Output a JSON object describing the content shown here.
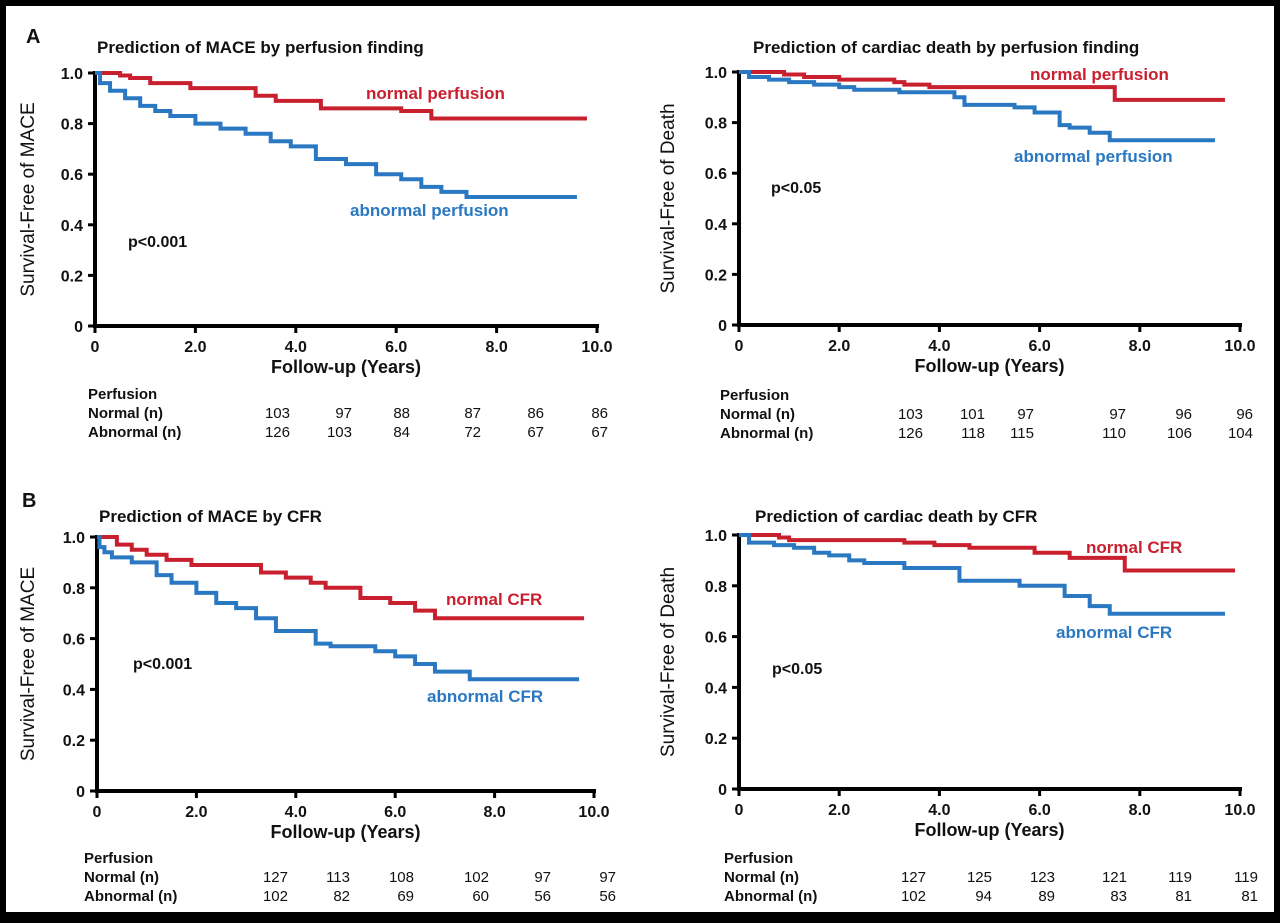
{
  "figure": {
    "panel_labels": [
      "A",
      "B"
    ],
    "colors": {
      "normal": "#C8202F",
      "abnormal": "#2A78C2",
      "axis": "#000000"
    }
  },
  "chart_data": [
    {
      "id": "a-left",
      "panel": "A",
      "type": "line",
      "subtype": "kaplan-meier-step",
      "title": "Prediction of MACE by perfusion finding",
      "xlabel": "Follow-up (Years)",
      "ylabel": "Survival-Free of MACE",
      "xlim": [
        0,
        10
      ],
      "ylim": [
        0,
        1
      ],
      "xticks": [
        "0",
        "2.0",
        "4.0",
        "6.0",
        "8.0",
        "10.0"
      ],
      "yticks": [
        "0",
        "0.2",
        "0.4",
        "0.6",
        "0.8",
        "1.0"
      ],
      "grid": false,
      "annotation": "p<0.001",
      "series": [
        {
          "name": "normal perfusion",
          "color": "#C8202F",
          "x": [
            0,
            0.5,
            0.7,
            1.1,
            1.9,
            3.2,
            3.6,
            4.5,
            6.1,
            6.7,
            9.8
          ],
          "y": [
            1.0,
            0.99,
            0.98,
            0.96,
            0.94,
            0.91,
            0.89,
            0.86,
            0.85,
            0.82,
            0.82
          ]
        },
        {
          "name": "abnormal perfusion",
          "color": "#2A78C2",
          "x": [
            0,
            0.1,
            0.3,
            0.6,
            0.9,
            1.2,
            1.5,
            2.0,
            2.5,
            3.0,
            3.5,
            3.9,
            4.4,
            5.0,
            5.6,
            6.1,
            6.5,
            6.9,
            7.4,
            9.6
          ],
          "y": [
            1.0,
            0.96,
            0.93,
            0.9,
            0.87,
            0.85,
            0.83,
            0.8,
            0.78,
            0.76,
            0.73,
            0.71,
            0.66,
            0.64,
            0.6,
            0.58,
            0.55,
            0.53,
            0.51,
            0.51
          ]
        }
      ],
      "legend": [
        {
          "label": "normal perfusion",
          "color": "#C8202F"
        },
        {
          "label": "abnormal perfusion",
          "color": "#2A78C2"
        }
      ],
      "risk_table": {
        "header": "Perfusion",
        "rows": [
          {
            "label": "Normal (n)",
            "values": [
              103,
              97,
              88,
              87,
              86,
              86
            ]
          },
          {
            "label": "Abnormal (n)",
            "values": [
              126,
              103,
              84,
              72,
              67,
              67
            ]
          }
        ]
      }
    },
    {
      "id": "a-right",
      "panel": "A",
      "type": "line",
      "subtype": "kaplan-meier-step",
      "title": "Prediction of cardiac death by perfusion finding",
      "xlabel": "Follow-up (Years)",
      "ylabel": "Survival-Free of Death",
      "xlim": [
        0,
        10
      ],
      "ylim": [
        0,
        1
      ],
      "xticks": [
        "0",
        "2.0",
        "4.0",
        "6.0",
        "8.0",
        "10.0"
      ],
      "yticks": [
        "0",
        "0.2",
        "0.4",
        "0.6",
        "0.8",
        "1.0"
      ],
      "grid": false,
      "annotation": "p<0.05",
      "series": [
        {
          "name": "normal perfusion",
          "color": "#C8202F",
          "x": [
            0,
            0.9,
            1.3,
            2.0,
            3.1,
            3.3,
            3.8,
            7.5,
            9.7
          ],
          "y": [
            1.0,
            0.99,
            0.98,
            0.97,
            0.96,
            0.95,
            0.94,
            0.89,
            0.89
          ]
        },
        {
          "name": "abnormal perfusion",
          "color": "#2A78C2",
          "x": [
            0,
            0.2,
            0.6,
            1.0,
            1.5,
            2.0,
            2.3,
            3.2,
            4.3,
            4.5,
            5.5,
            5.9,
            6.4,
            6.6,
            7.0,
            7.4,
            9.5
          ],
          "y": [
            1.0,
            0.98,
            0.97,
            0.96,
            0.95,
            0.94,
            0.93,
            0.92,
            0.9,
            0.87,
            0.86,
            0.84,
            0.79,
            0.78,
            0.76,
            0.73,
            0.73
          ]
        }
      ],
      "legend": [
        {
          "label": "normal perfusion",
          "color": "#C8202F"
        },
        {
          "label": "abnormal perfusion",
          "color": "#2A78C2"
        }
      ],
      "risk_table": {
        "header": "Perfusion",
        "rows": [
          {
            "label": "Normal (n)",
            "values": [
              103,
              101,
              97,
              97,
              96,
              96
            ]
          },
          {
            "label": "Abnormal (n)",
            "values": [
              126,
              118,
              115,
              110,
              106,
              104
            ]
          }
        ]
      }
    },
    {
      "id": "b-left",
      "panel": "B",
      "type": "line",
      "subtype": "kaplan-meier-step",
      "title": "Prediction of MACE by CFR",
      "xlabel": "Follow-up (Years)",
      "ylabel": "Survival-Free of MACE",
      "xlim": [
        0,
        10
      ],
      "ylim": [
        0,
        1
      ],
      "xticks": [
        "0",
        "2.0",
        "4.0",
        "6.0",
        "8.0",
        "10.0"
      ],
      "yticks": [
        "0",
        "0.2",
        "0.4",
        "0.6",
        "0.8",
        "1.0"
      ],
      "grid": false,
      "annotation": "p<0.001",
      "series": [
        {
          "name": "normal CFR",
          "color": "#C8202F",
          "x": [
            0,
            0.4,
            0.7,
            1.0,
            1.4,
            1.9,
            3.3,
            3.8,
            4.3,
            4.6,
            5.3,
            5.9,
            6.4,
            6.8,
            9.8
          ],
          "y": [
            1.0,
            0.97,
            0.95,
            0.93,
            0.91,
            0.89,
            0.86,
            0.84,
            0.82,
            0.8,
            0.76,
            0.74,
            0.71,
            0.68,
            0.68
          ]
        },
        {
          "name": "abnormal CFR",
          "color": "#2A78C2",
          "x": [
            0,
            0.05,
            0.15,
            0.3,
            0.7,
            1.2,
            1.5,
            2.0,
            2.4,
            2.8,
            3.2,
            3.6,
            4.4,
            4.7,
            5.6,
            6.0,
            6.4,
            6.8,
            7.5,
            9.7
          ],
          "y": [
            1.0,
            0.96,
            0.94,
            0.92,
            0.9,
            0.85,
            0.82,
            0.78,
            0.74,
            0.72,
            0.68,
            0.63,
            0.58,
            0.57,
            0.55,
            0.53,
            0.5,
            0.47,
            0.44,
            0.44
          ]
        }
      ],
      "legend": [
        {
          "label": "normal CFR",
          "color": "#C8202F"
        },
        {
          "label": "abnormal CFR",
          "color": "#2A78C2"
        }
      ],
      "risk_table": {
        "header": "Perfusion",
        "rows": [
          {
            "label": "Normal (n)",
            "values": [
              127,
              113,
              108,
              102,
              97,
              97
            ]
          },
          {
            "label": "Abnormal (n)",
            "values": [
              102,
              82,
              69,
              60,
              56,
              56
            ]
          }
        ]
      }
    },
    {
      "id": "b-right",
      "panel": "B",
      "type": "line",
      "subtype": "kaplan-meier-step",
      "title": "Prediction of cardiac death by CFR",
      "xlabel": "Follow-up (Years)",
      "ylabel": "Survival-Free of Death",
      "xlim": [
        0,
        10
      ],
      "ylim": [
        0,
        1
      ],
      "xticks": [
        "0",
        "2.0",
        "4.0",
        "6.0",
        "8.0",
        "10.0"
      ],
      "yticks": [
        "0",
        "0.2",
        "0.4",
        "0.6",
        "0.8",
        "1.0"
      ],
      "grid": false,
      "annotation": "p<0.05",
      "series": [
        {
          "name": "normal CFR",
          "color": "#C8202F",
          "x": [
            0,
            0.8,
            1.0,
            3.3,
            3.9,
            4.6,
            5.9,
            6.6,
            7.7,
            9.9
          ],
          "y": [
            1.0,
            0.99,
            0.98,
            0.97,
            0.96,
            0.95,
            0.93,
            0.91,
            0.86,
            0.86
          ]
        },
        {
          "name": "abnormal CFR",
          "color": "#2A78C2",
          "x": [
            0,
            0.2,
            0.7,
            1.1,
            1.5,
            1.8,
            2.2,
            2.5,
            3.3,
            4.4,
            5.6,
            6.5,
            7.0,
            7.4,
            9.7
          ],
          "y": [
            1.0,
            0.97,
            0.96,
            0.95,
            0.93,
            0.92,
            0.9,
            0.89,
            0.87,
            0.82,
            0.8,
            0.76,
            0.72,
            0.69,
            0.69
          ]
        }
      ],
      "legend": [
        {
          "label": "normal CFR",
          "color": "#C8202F"
        },
        {
          "label": "abnormal CFR",
          "color": "#2A78C2"
        }
      ],
      "risk_table": {
        "header": "Perfusion",
        "rows": [
          {
            "label": "Normal (n)",
            "values": [
              127,
              125,
              123,
              121,
              119,
              119
            ]
          },
          {
            "label": "Abnormal (n)",
            "values": [
              102,
              94,
              89,
              83,
              81,
              81
            ]
          }
        ]
      }
    }
  ]
}
